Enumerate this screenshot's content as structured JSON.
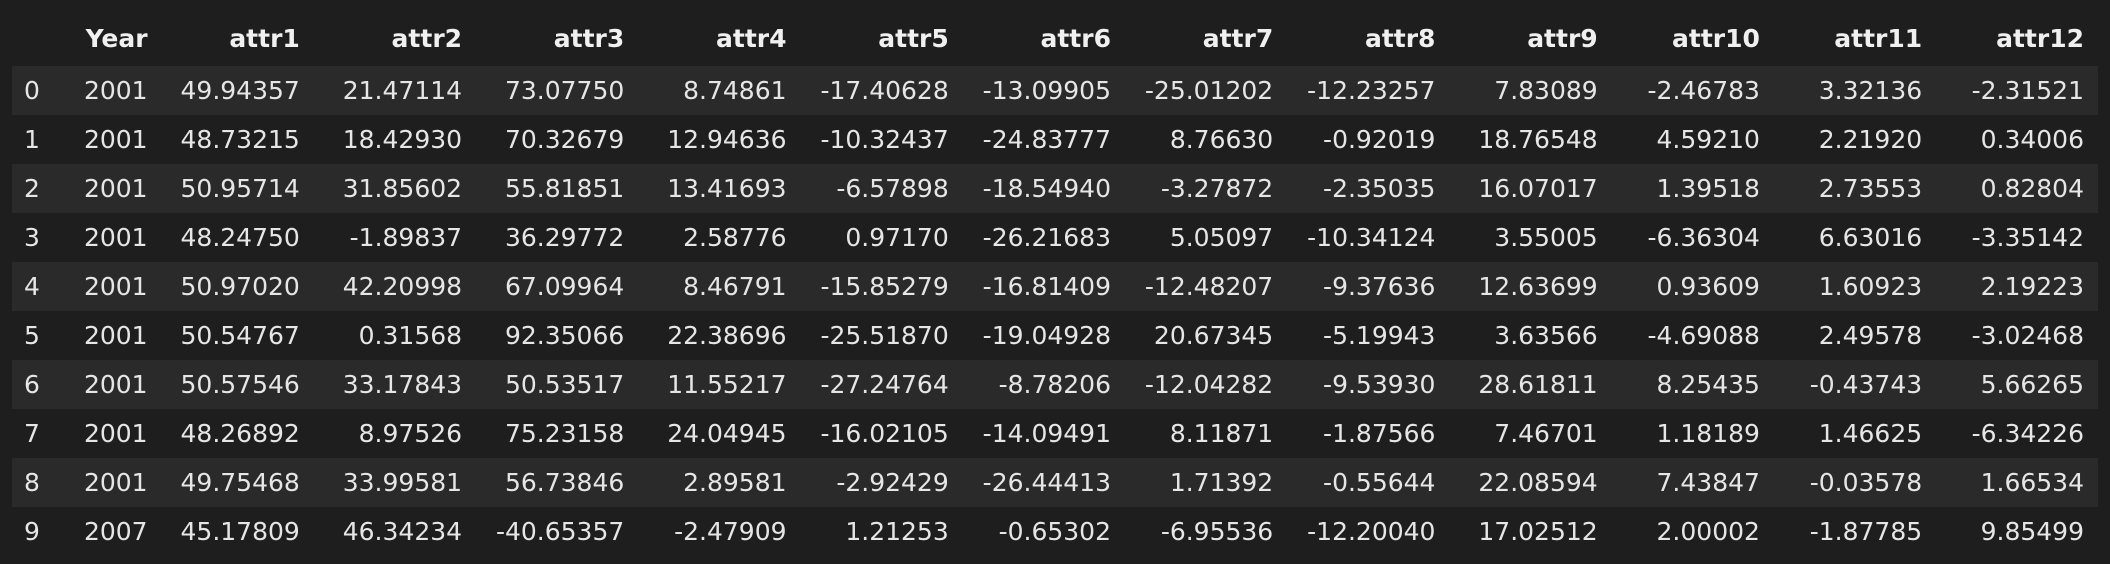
{
  "table": {
    "columns": [
      "",
      "Year",
      "attr1",
      "attr2",
      "attr3",
      "attr4",
      "attr5",
      "attr6",
      "attr7",
      "attr8",
      "attr9",
      "attr10",
      "attr11",
      "attr12"
    ],
    "rows": [
      [
        "0",
        "2001",
        "49.94357",
        "21.47114",
        "73.07750",
        "8.74861",
        "-17.40628",
        "-13.09905",
        "-25.01202",
        "-12.23257",
        "7.83089",
        "-2.46783",
        "3.32136",
        "-2.31521"
      ],
      [
        "1",
        "2001",
        "48.73215",
        "18.42930",
        "70.32679",
        "12.94636",
        "-10.32437",
        "-24.83777",
        "8.76630",
        "-0.92019",
        "18.76548",
        "4.59210",
        "2.21920",
        "0.34006"
      ],
      [
        "2",
        "2001",
        "50.95714",
        "31.85602",
        "55.81851",
        "13.41693",
        "-6.57898",
        "-18.54940",
        "-3.27872",
        "-2.35035",
        "16.07017",
        "1.39518",
        "2.73553",
        "0.82804"
      ],
      [
        "3",
        "2001",
        "48.24750",
        "-1.89837",
        "36.29772",
        "2.58776",
        "0.97170",
        "-26.21683",
        "5.05097",
        "-10.34124",
        "3.55005",
        "-6.36304",
        "6.63016",
        "-3.35142"
      ],
      [
        "4",
        "2001",
        "50.97020",
        "42.20998",
        "67.09964",
        "8.46791",
        "-15.85279",
        "-16.81409",
        "-12.48207",
        "-9.37636",
        "12.63699",
        "0.93609",
        "1.60923",
        "2.19223"
      ],
      [
        "5",
        "2001",
        "50.54767",
        "0.31568",
        "92.35066",
        "22.38696",
        "-25.51870",
        "-19.04928",
        "20.67345",
        "-5.19943",
        "3.63566",
        "-4.69088",
        "2.49578",
        "-3.02468"
      ],
      [
        "6",
        "2001",
        "50.57546",
        "33.17843",
        "50.53517",
        "11.55217",
        "-27.24764",
        "-8.78206",
        "-12.04282",
        "-9.53930",
        "28.61811",
        "8.25435",
        "-0.43743",
        "5.66265"
      ],
      [
        "7",
        "2001",
        "48.26892",
        "8.97526",
        "75.23158",
        "24.04945",
        "-16.02105",
        "-14.09491",
        "8.11871",
        "-1.87566",
        "7.46701",
        "1.18189",
        "1.46625",
        "-6.34226"
      ],
      [
        "8",
        "2001",
        "49.75468",
        "33.99581",
        "56.73846",
        "2.89581",
        "-2.92429",
        "-26.44413",
        "1.71392",
        "-0.55644",
        "22.08594",
        "7.43847",
        "-0.03578",
        "1.66534"
      ],
      [
        "9",
        "2007",
        "45.17809",
        "46.34234",
        "-40.65357",
        "-2.47909",
        "1.21253",
        "-0.65302",
        "-6.95536",
        "-12.20040",
        "17.02512",
        "2.00002",
        "-1.87785",
        "9.85499"
      ]
    ]
  }
}
